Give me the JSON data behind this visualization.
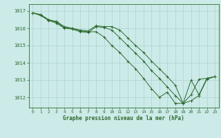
{
  "title": "Graphe pression niveau de la mer (hPa)",
  "bg_color": "#cceae8",
  "grid_color": "#aad4d0",
  "line_color": "#2d6a2d",
  "xlim": [
    -0.5,
    23.5
  ],
  "ylim": [
    1011.4,
    1017.4
  ],
  "yticks": [
    1012,
    1013,
    1014,
    1015,
    1016,
    1017
  ],
  "xticks": [
    0,
    1,
    2,
    3,
    4,
    5,
    6,
    7,
    8,
    9,
    10,
    11,
    12,
    13,
    14,
    15,
    16,
    17,
    18,
    19,
    20,
    21,
    22,
    23
  ],
  "series1": [
    1016.9,
    1016.8,
    1016.5,
    1016.4,
    1016.1,
    1016.0,
    1015.9,
    1015.85,
    1016.15,
    1016.1,
    1016.1,
    1015.9,
    1015.45,
    1015.0,
    1014.6,
    1014.1,
    1013.65,
    1013.2,
    1012.7,
    1011.65,
    1013.0,
    1012.15,
    1013.1,
    1013.2
  ],
  "series2": [
    1016.9,
    1016.75,
    1016.5,
    1016.35,
    1016.05,
    1016.0,
    1015.85,
    1015.8,
    1015.8,
    1015.5,
    1015.0,
    1014.6,
    1014.1,
    1013.65,
    1013.1,
    1012.5,
    1012.0,
    1012.3,
    1011.65,
    1011.65,
    1011.8,
    1012.1,
    1013.05,
    1013.2
  ],
  "series3": [
    1016.9,
    1016.75,
    1016.45,
    1016.3,
    1016.0,
    1015.95,
    1015.8,
    1015.75,
    1016.1,
    1016.05,
    1015.9,
    1015.45,
    1015.0,
    1014.55,
    1014.1,
    1013.55,
    1013.1,
    1012.6,
    1012.1,
    1011.65,
    1012.15,
    1013.05,
    1013.1,
    1013.2
  ],
  "ylabel_fontsize": 5,
  "xlabel_fontsize": 4.5,
  "title_fontsize": 5.5
}
